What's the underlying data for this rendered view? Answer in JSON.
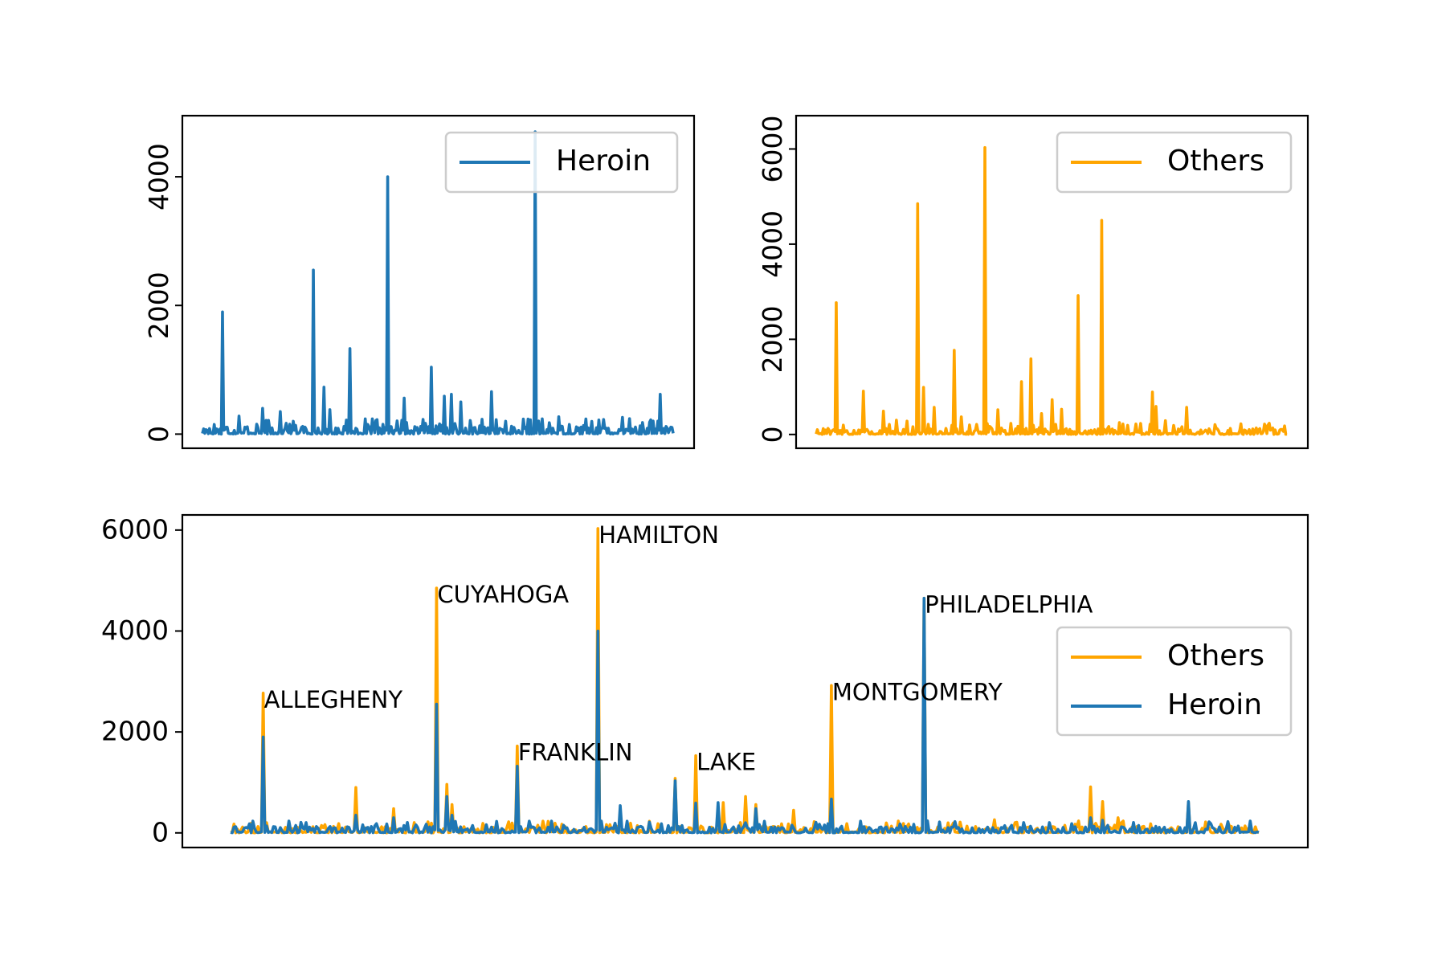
{
  "colors": {
    "heroin": "#1f77b4",
    "others": "#ffa500",
    "axes": "#000000"
  },
  "chart_data": [
    {
      "type": "line",
      "legend": [
        "Heroin"
      ],
      "legend_position": "upper-right",
      "ylim": [
        -220,
        4950
      ],
      "yticks": [
        0,
        2000,
        4000
      ],
      "ytick_labels": [
        "0",
        "2000",
        "4000"
      ],
      "n_points": 400,
      "series": [
        {
          "name": "Heroin",
          "color": "#1f77b4",
          "peaks": [
            [
              6,
              1900
            ],
            [
              33,
              2550
            ],
            [
              36,
              730
            ],
            [
              44,
              1330
            ],
            [
              55,
              4000
            ],
            [
              60,
              560
            ],
            [
              65,
              120
            ],
            [
              68,
              1040
            ],
            [
              72,
              590
            ],
            [
              74,
              620
            ],
            [
              77,
              500
            ],
            [
              83,
              230
            ],
            [
              86,
              660
            ],
            [
              99,
              4700
            ],
            [
              106,
              270
            ],
            [
              118,
              220
            ],
            [
              125,
              260
            ],
            [
              136,
              620
            ],
            [
              11,
              280
            ],
            [
              18,
              400
            ],
            [
              23,
              350
            ],
            [
              27,
              200
            ],
            [
              38,
              380
            ],
            [
              42,
              120
            ],
            [
              90,
              200
            ],
            [
              109,
              150
            ],
            [
              127,
              240
            ],
            [
              131,
              180
            ]
          ]
        }
      ]
    },
    {
      "type": "line",
      "legend": [
        "Others"
      ],
      "legend_position": "upper-right",
      "ylim": [
        -290,
        6700
      ],
      "yticks": [
        0,
        2000,
        4000,
        6000
      ],
      "ytick_labels": [
        "0",
        "2000",
        "4000",
        "6000"
      ],
      "n_points": 400,
      "series": [
        {
          "name": "Others",
          "color": "#ffa500",
          "peaks": [
            [
              6,
              2770
            ],
            [
              14,
              910
            ],
            [
              20,
              490
            ],
            [
              30,
              4850
            ],
            [
              32,
              990
            ],
            [
              35,
              570
            ],
            [
              41,
              1770
            ],
            [
              43,
              370
            ],
            [
              50,
              6030
            ],
            [
              54,
              520
            ],
            [
              61,
              1110
            ],
            [
              64,
              1590
            ],
            [
              67,
              440
            ],
            [
              70,
              730
            ],
            [
              73,
              530
            ],
            [
              78,
              2920
            ],
            [
              85,
              4500
            ],
            [
              100,
              890
            ],
            [
              101,
              590
            ],
            [
              104,
              290
            ],
            [
              110,
              570
            ],
            [
              24,
              300
            ],
            [
              27,
              280
            ],
            [
              90,
              250
            ],
            [
              95,
              220
            ]
          ]
        }
      ]
    },
    {
      "type": "line",
      "legend": [
        "Others",
        "Heroin"
      ],
      "legend_position": "center-right",
      "ylim": [
        -290,
        6300
      ],
      "yticks": [
        0,
        2000,
        4000,
        6000
      ],
      "ytick_labels": [
        "0",
        "2000",
        "4000",
        "6000"
      ],
      "n_points": 600,
      "annotations": [
        {
          "text": "ALLEGHENY",
          "x": 6,
          "y": 2770
        },
        {
          "text": "CUYAHOGA",
          "x": 38,
          "y": 4850
        },
        {
          "text": "FRANKLIN",
          "x": 53,
          "y": 1720
        },
        {
          "text": "HAMILTON",
          "x": 68,
          "y": 6030
        },
        {
          "text": "LAKE",
          "x": 86,
          "y": 1530
        },
        {
          "text": "MONTGOMERY",
          "x": 111,
          "y": 2920
        },
        {
          "text": "PHILADELPHIA",
          "x": 128,
          "y": 4650
        }
      ],
      "series": [
        {
          "name": "Others",
          "color": "#ffa500",
          "peaks": [
            [
              6,
              2770
            ],
            [
              38,
              4850
            ],
            [
              40,
              960
            ],
            [
              53,
              1720
            ],
            [
              68,
              6030
            ],
            [
              82,
              1080
            ],
            [
              86,
              1530
            ],
            [
              95,
              720
            ],
            [
              97,
              560
            ],
            [
              111,
              2920
            ],
            [
              128,
              4650
            ],
            [
              159,
              910
            ],
            [
              161,
              620
            ],
            [
              23,
              900
            ],
            [
              30,
              480
            ],
            [
              41,
              560
            ],
            [
              91,
              600
            ],
            [
              104,
              450
            ],
            [
              141,
              260
            ],
            [
              164,
              300
            ],
            [
              177,
              600
            ]
          ]
        },
        {
          "name": "Heroin",
          "color": "#1f77b4",
          "peaks": [
            [
              6,
              1900
            ],
            [
              38,
              2550
            ],
            [
              40,
              720
            ],
            [
              53,
              1320
            ],
            [
              68,
              4000
            ],
            [
              72,
              540
            ],
            [
              82,
              1030
            ],
            [
              86,
              590
            ],
            [
              90,
              600
            ],
            [
              97,
              480
            ],
            [
              111,
              670
            ],
            [
              128,
              4650
            ],
            [
              159,
              300
            ],
            [
              177,
              620
            ],
            [
              23,
              350
            ],
            [
              30,
              300
            ],
            [
              41,
              350
            ],
            [
              161,
              250
            ]
          ]
        }
      ]
    }
  ]
}
